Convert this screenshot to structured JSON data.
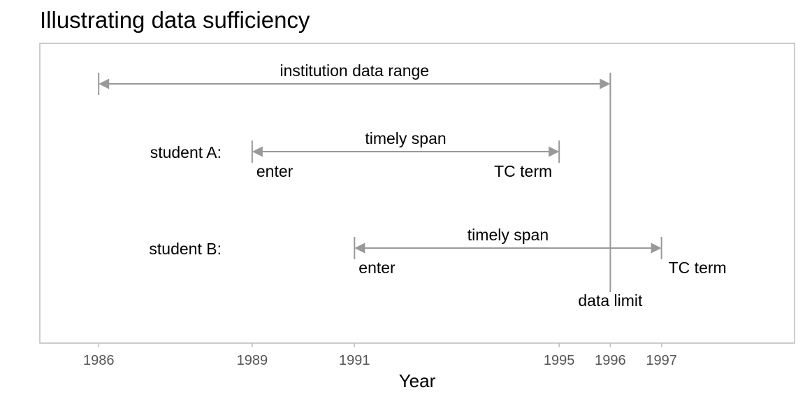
{
  "title": "Illustrating data sufficiency",
  "colors": {
    "line": "#999999",
    "panel_border": "#bbbbbb",
    "text": "#000000",
    "tick_text": "#555555"
  },
  "chart_data": {
    "type": "timeline",
    "title": "Illustrating data sufficiency",
    "xlabel": "Year",
    "xticks": [
      1986,
      1989,
      1991,
      1995,
      1996,
      1997
    ],
    "xlim": [
      1984.85,
      1999.6
    ],
    "grid": false,
    "spans": [
      {
        "label": "institution data range",
        "start": 1986,
        "end": 1996
      },
      {
        "row_label": "student A:",
        "label": "timely span",
        "start": 1989,
        "end": 1995,
        "start_label": "enter",
        "end_label": "TC term"
      },
      {
        "row_label": "student B:",
        "label": "timely span",
        "start": 1991,
        "end": 1997,
        "start_label": "enter",
        "end_label": "TC term"
      }
    ],
    "limit": {
      "x": 1996,
      "label": "data limit"
    }
  }
}
